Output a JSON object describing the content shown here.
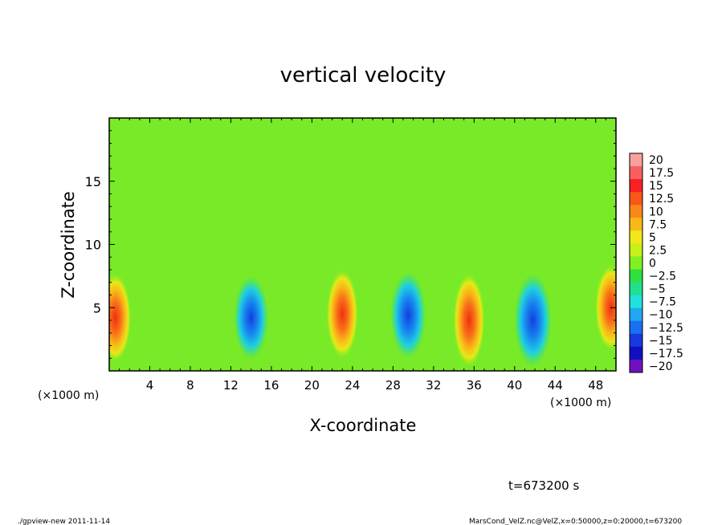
{
  "chart_data": {
    "type": "heatmap",
    "title": "vertical velocity",
    "xlabel": "X-coordinate",
    "ylabel": "Z-coordinate",
    "x_unit": "(×1000 m)",
    "y_unit": "(×1000 m)",
    "xlim": [
      0,
      50
    ],
    "ylim": [
      0,
      20
    ],
    "x_ticks": [
      4,
      8,
      12,
      16,
      20,
      24,
      28,
      32,
      36,
      40,
      44,
      48
    ],
    "y_ticks": [
      5,
      10,
      15
    ],
    "colorbar": {
      "levels": [
        "20",
        "17.5",
        "15",
        "12.5",
        "10",
        "7.5",
        "5",
        "2.5",
        "0",
        "-2.5",
        "-5",
        "-7.5",
        "-10",
        "-12.5",
        "-15",
        "-17.5",
        "-20"
      ],
      "colors": [
        "#f8a0a0",
        "#f86060",
        "#f82020",
        "#f85818",
        "#f88818",
        "#f8b818",
        "#f0e818",
        "#c8f018",
        "#80f020",
        "#30e040",
        "#20e090",
        "#20e0e0",
        "#20a8f0",
        "#1870f0",
        "#1838e0",
        "#1010c0",
        "#7010c0"
      ]
    },
    "features": [
      {
        "x": 0.6,
        "z": 4.2,
        "value": 11,
        "kind": "updraft"
      },
      {
        "x": 14.0,
        "z": 4.2,
        "value": -9,
        "kind": "downdraft"
      },
      {
        "x": 23.0,
        "z": 4.5,
        "value": 11,
        "kind": "updraft"
      },
      {
        "x": 29.5,
        "z": 4.4,
        "value": -10,
        "kind": "downdraft"
      },
      {
        "x": 35.5,
        "z": 4.0,
        "value": 12.5,
        "kind": "updraft"
      },
      {
        "x": 41.8,
        "z": 4.0,
        "value": -12,
        "kind": "downdraft"
      },
      {
        "x": 49.5,
        "z": 5.0,
        "value": 10,
        "kind": "updraft"
      }
    ]
  },
  "annotations": {
    "time": "t=673200 s",
    "footer_left": "./gpview-new  2011-11-14",
    "footer_right": "MarsCond_VelZ.nc@VelZ,x=0:50000,z=0:20000,t=673200"
  }
}
